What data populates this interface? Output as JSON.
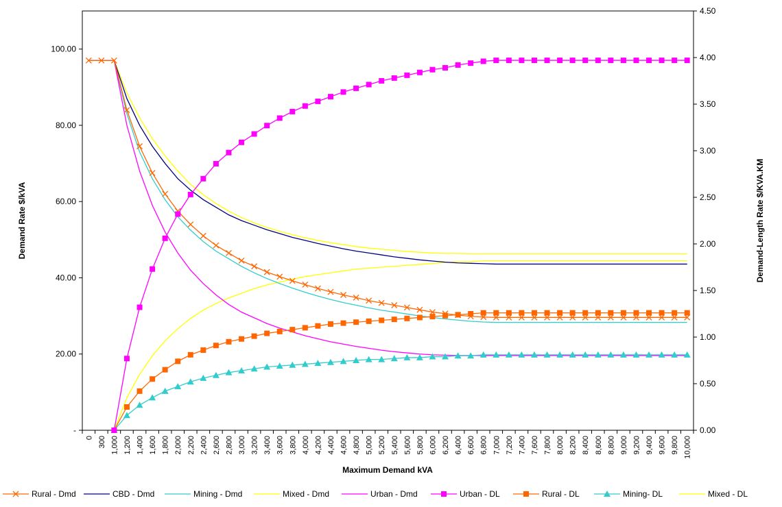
{
  "chart_data": {
    "type": "line",
    "xlabel": "Maximum Demand kVA",
    "ylabel_left": "Demand Rate $/kVA",
    "ylabel_right": "Demand-Length Rate $/KVA.KM",
    "y_left": {
      "range": [
        0,
        110
      ],
      "ticks": [
        0,
        20,
        40,
        60,
        80,
        100
      ],
      "tick_labels": [
        "-",
        "20.00",
        "40.00",
        "60.00",
        "80.00",
        "100.00"
      ]
    },
    "y_right": {
      "range": [
        0,
        4.5
      ],
      "ticks": [
        0,
        0.5,
        1.0,
        1.5,
        2.0,
        2.5,
        3.0,
        3.5,
        4.0,
        4.5
      ],
      "tick_labels": [
        "0.00",
        "0.50",
        "1.00",
        "1.50",
        "2.00",
        "2.50",
        "3.00",
        "3.50",
        "4.00",
        "4.50"
      ]
    },
    "categories": [
      "0",
      "300",
      "1,000",
      "1,200",
      "1,400",
      "1,600",
      "1,800",
      "2,000",
      "2,200",
      "2,400",
      "2,600",
      "2,800",
      "3,000",
      "3,200",
      "3,400",
      "3,600",
      "3,800",
      "4,000",
      "4,200",
      "4,400",
      "4,600",
      "4,800",
      "5,000",
      "5,200",
      "5,400",
      "5,600",
      "5,800",
      "6,000",
      "6,200",
      "6,400",
      "6,600",
      "6,800",
      "7,000",
      "7,200",
      "7,400",
      "7,600",
      "7,800",
      "8,000",
      "8,200",
      "8,400",
      "8,600",
      "8,800",
      "9,000",
      "9,200",
      "9,400",
      "9,600",
      "9,800",
      "10,000"
    ],
    "legend_position": "bottom",
    "grid": false,
    "series": [
      {
        "name": "Rural - Dmd",
        "axis": "left",
        "color": "#ff6600",
        "marker": "x",
        "values": [
          97,
          97,
          97,
          84.0,
          74.5,
          67.5,
          62.0,
          57.5,
          54.0,
          51.0,
          48.5,
          46.5,
          44.5,
          43.0,
          41.5,
          40.3,
          39.2,
          38.2,
          37.2,
          36.3,
          35.5,
          34.8,
          34.0,
          33.4,
          32.8,
          32.2,
          31.6,
          31.0,
          30.6,
          30.2,
          29.9,
          29.7,
          29.6,
          29.6,
          29.6,
          29.6,
          29.6,
          29.6,
          29.6,
          29.6,
          29.6,
          29.6,
          29.6,
          29.6,
          29.6,
          29.6,
          29.6,
          29.6
        ]
      },
      {
        "name": "CBD - Dmd",
        "axis": "left",
        "color": "#000080",
        "marker": "none",
        "values": [
          97,
          97,
          97,
          87.0,
          80.0,
          74.5,
          70.0,
          66.0,
          63.0,
          60.5,
          58.5,
          56.5,
          55.0,
          53.8,
          52.6,
          51.6,
          50.6,
          49.8,
          49.0,
          48.3,
          47.6,
          47.0,
          46.5,
          46.0,
          45.5,
          45.1,
          44.7,
          44.4,
          44.1,
          43.9,
          43.8,
          43.7,
          43.6,
          43.6,
          43.6,
          43.6,
          43.6,
          43.6,
          43.6,
          43.6,
          43.6,
          43.6,
          43.6,
          43.6,
          43.6,
          43.6,
          43.6,
          43.6
        ]
      },
      {
        "name": "Mining - Dmd",
        "axis": "left",
        "color": "#33cccc",
        "marker": "none",
        "values": [
          97,
          97,
          97,
          83.0,
          73.0,
          66.0,
          60.5,
          56.0,
          52.5,
          49.5,
          47.0,
          45.0,
          43.0,
          41.3,
          39.8,
          38.5,
          37.3,
          36.2,
          35.2,
          34.3,
          33.5,
          32.8,
          32.1,
          31.5,
          31.0,
          30.5,
          30.0,
          29.6,
          29.2,
          28.9,
          28.6,
          28.4,
          28.3,
          28.3,
          28.3,
          28.3,
          28.3,
          28.3,
          28.3,
          28.3,
          28.3,
          28.3,
          28.3,
          28.3,
          28.3,
          28.3,
          28.3,
          28.3
        ]
      },
      {
        "name": "Mixed - Dmd",
        "axis": "left",
        "color": "#ffff00",
        "marker": "none",
        "values": [
          97,
          97,
          97,
          88.5,
          82.0,
          76.5,
          72.0,
          68.0,
          64.5,
          61.8,
          59.5,
          57.5,
          55.8,
          54.4,
          53.2,
          52.2,
          51.3,
          50.5,
          49.8,
          49.2,
          48.7,
          48.2,
          47.8,
          47.5,
          47.2,
          46.9,
          46.7,
          46.5,
          46.4,
          46.4,
          46.3,
          46.3,
          46.3,
          46.3,
          46.3,
          46.3,
          46.3,
          46.3,
          46.3,
          46.3,
          46.3,
          46.3,
          46.3,
          46.3,
          46.3,
          46.3,
          46.3,
          46.3
        ]
      },
      {
        "name": "Urban - Dmd",
        "axis": "left",
        "color": "#ff00ff",
        "marker": "none",
        "values": [
          97,
          97,
          97,
          80.0,
          68.0,
          59.0,
          52.0,
          46.5,
          42.0,
          38.5,
          35.5,
          33.0,
          31.0,
          29.5,
          28.0,
          26.8,
          25.8,
          24.8,
          24.0,
          23.2,
          22.6,
          22.0,
          21.5,
          21.0,
          20.6,
          20.3,
          20.0,
          19.8,
          19.7,
          19.6,
          19.6,
          19.6,
          19.6,
          19.6,
          19.6,
          19.6,
          19.6,
          19.6,
          19.6,
          19.6,
          19.6,
          19.6,
          19.6,
          19.6,
          19.6,
          19.6,
          19.6,
          19.6
        ]
      },
      {
        "name": "Urban - DL",
        "axis": "right",
        "color": "#ff00ff",
        "marker": "square",
        "values": [
          null,
          null,
          0.0,
          0.77,
          1.32,
          1.73,
          2.06,
          2.32,
          2.53,
          2.7,
          2.86,
          2.98,
          3.09,
          3.18,
          3.27,
          3.35,
          3.42,
          3.48,
          3.53,
          3.58,
          3.63,
          3.67,
          3.71,
          3.75,
          3.78,
          3.81,
          3.84,
          3.87,
          3.89,
          3.92,
          3.94,
          3.96,
          3.97,
          3.97,
          3.97,
          3.97,
          3.97,
          3.97,
          3.97,
          3.97,
          3.97,
          3.97,
          3.97,
          3.97,
          3.97,
          3.97,
          3.97,
          3.97
        ]
      },
      {
        "name": "Rural - DL",
        "axis": "right",
        "color": "#ff6600",
        "marker": "square",
        "values": [
          null,
          null,
          0.0,
          0.25,
          0.42,
          0.55,
          0.65,
          0.74,
          0.81,
          0.86,
          0.91,
          0.95,
          0.98,
          1.01,
          1.04,
          1.06,
          1.08,
          1.1,
          1.12,
          1.14,
          1.15,
          1.16,
          1.17,
          1.18,
          1.19,
          1.2,
          1.21,
          1.22,
          1.23,
          1.24,
          1.25,
          1.26,
          1.26,
          1.26,
          1.26,
          1.26,
          1.26,
          1.26,
          1.26,
          1.26,
          1.26,
          1.26,
          1.26,
          1.26,
          1.26,
          1.26,
          1.26,
          1.26
        ]
      },
      {
        "name": "Mining- DL",
        "axis": "right",
        "color": "#33cccc",
        "marker": "triangle",
        "values": [
          null,
          null,
          0.0,
          0.16,
          0.27,
          0.35,
          0.42,
          0.47,
          0.52,
          0.56,
          0.59,
          0.62,
          0.64,
          0.66,
          0.68,
          0.69,
          0.7,
          0.71,
          0.72,
          0.73,
          0.74,
          0.75,
          0.76,
          0.76,
          0.77,
          0.78,
          0.78,
          0.79,
          0.79,
          0.8,
          0.8,
          0.81,
          0.81,
          0.81,
          0.81,
          0.81,
          0.81,
          0.81,
          0.81,
          0.81,
          0.81,
          0.81,
          0.81,
          0.81,
          0.81,
          0.81,
          0.81,
          0.81
        ]
      },
      {
        "name": "Mixed - DL",
        "axis": "right",
        "color": "#ffff00",
        "marker": "none",
        "values": [
          null,
          null,
          0.0,
          0.35,
          0.6,
          0.8,
          0.96,
          1.09,
          1.2,
          1.29,
          1.36,
          1.42,
          1.47,
          1.52,
          1.56,
          1.59,
          1.62,
          1.65,
          1.67,
          1.69,
          1.71,
          1.73,
          1.74,
          1.75,
          1.76,
          1.77,
          1.78,
          1.79,
          1.8,
          1.81,
          1.81,
          1.82,
          1.82,
          1.82,
          1.82,
          1.82,
          1.82,
          1.82,
          1.82,
          1.82,
          1.82,
          1.82,
          1.82,
          1.82,
          1.82,
          1.82,
          1.82,
          1.82
        ]
      }
    ]
  }
}
